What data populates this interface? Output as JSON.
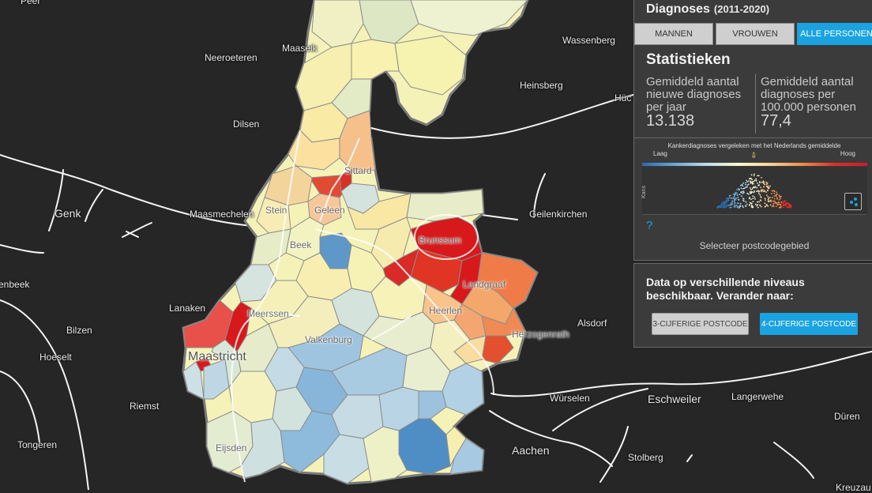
{
  "panel": {
    "title": "Diagnoses",
    "period": "(2011-2020)",
    "tabs": [
      {
        "label": "MANNEN",
        "active": false
      },
      {
        "label": "VROUWEN",
        "active": false
      },
      {
        "label": "ALLE PERSONEN",
        "active": true
      }
    ],
    "stats_heading": "Statistieken",
    "stat1_label": "Gemiddeld aantal nieuwe diagnoses per jaar",
    "stat1_value": "13.138",
    "stat2_label": "Gemiddeld aantal diagnoses per 100.000 personen",
    "stat2_value": "77,4",
    "compare_title": "Kankerdiagnoses vergeleken met het Nederlands gemiddelde",
    "low_label": "Laag",
    "high_label": "Hoog",
    "kans_label": "Kans",
    "help": "?",
    "select_hint": "Selecteer postcodegebied"
  },
  "levels": {
    "text": "Data op verschillende niveaus beschikbaar. Verander naar:",
    "btn3": "3-CIJFERIGE POSTCODE",
    "btn4": "4-CIJFERIGE POSTCODE"
  },
  "colors": {
    "accent": "#1aa3e0",
    "background": "#262626",
    "low": "#2c6ab0",
    "high": "#d7191c",
    "neutral": "#f7f7c8"
  },
  "map": {
    "outside_places": [
      "Peer",
      "Maaseik",
      "Wassenberg",
      "Neeroeteren",
      "Heinsberg",
      "Hüc",
      "Dilsen",
      "Genk",
      "Maasmechelen",
      "Geilenkirchen",
      "enbeek",
      "Lanaken",
      "Alsdorf",
      "Bilzen",
      "Hoeselt",
      "Riemst",
      "Würselen",
      "Eschweiler",
      "Langerwehe",
      "Düren",
      "Tongeren",
      "Aachen",
      "Stolberg",
      "Kreuzau"
    ],
    "inside_places": [
      "Sittard",
      "Stein",
      "Geleen",
      "Beek",
      "Brunssum",
      "Landgraaf",
      "Meerssen",
      "Heerlen",
      "Herzogenrath",
      "Valkenburg",
      "Maastricht",
      "Eijsden"
    ]
  }
}
